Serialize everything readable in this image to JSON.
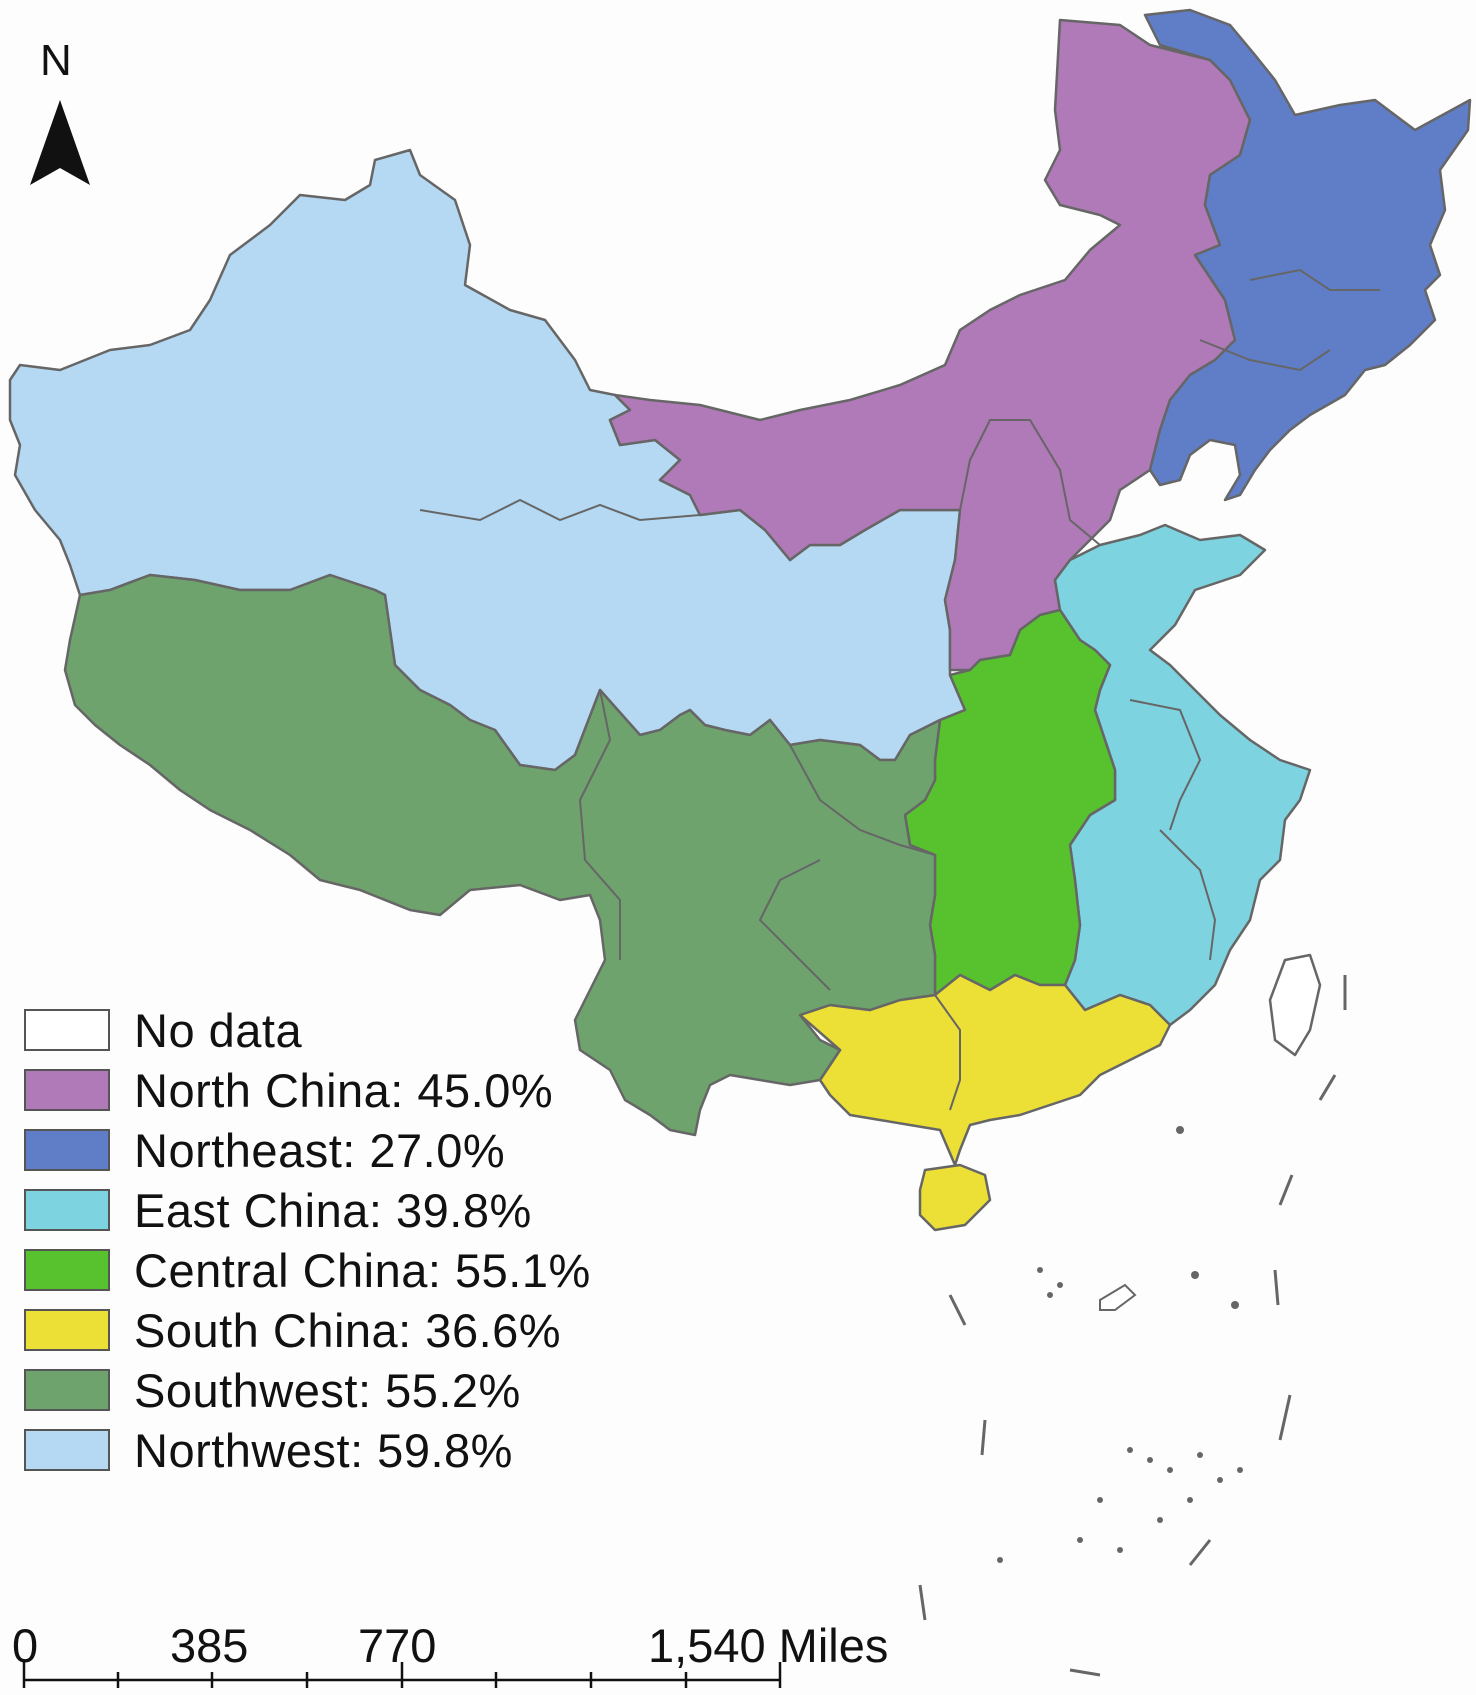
{
  "north_arrow": {
    "letter": "N",
    "icon": "north-arrow-icon"
  },
  "legend": [
    {
      "label": "No data",
      "color": "#ffffff"
    },
    {
      "label": "North China: 45.0%",
      "color": "#b07ab8",
      "region": "north_china",
      "value": 45.0
    },
    {
      "label": "Northeast: 27.0%",
      "color": "#5f7ec7",
      "region": "northeast",
      "value": 27.0
    },
    {
      "label": "East China: 39.8%",
      "color": "#7ed3e0",
      "region": "east_china",
      "value": 39.8
    },
    {
      "label": "Central China: 55.1%",
      "color": "#58c22e",
      "region": "central_china",
      "value": 55.1
    },
    {
      "label": "South China: 36.6%",
      "color": "#ecdf35",
      "region": "south_china",
      "value": 36.6
    },
    {
      "label": "Southwest: 55.2%",
      "color": "#6ea36e",
      "region": "southwest",
      "value": 55.2
    },
    {
      "label": "Northwest: 59.8%",
      "color": "#b6d9f3",
      "region": "northwest",
      "value": 59.8
    }
  ],
  "scale_bar": {
    "labels": [
      "0",
      "385",
      "770",
      "1,540 Miles"
    ]
  },
  "colors": {
    "border": "#666666",
    "background": "#fdfdfd"
  }
}
